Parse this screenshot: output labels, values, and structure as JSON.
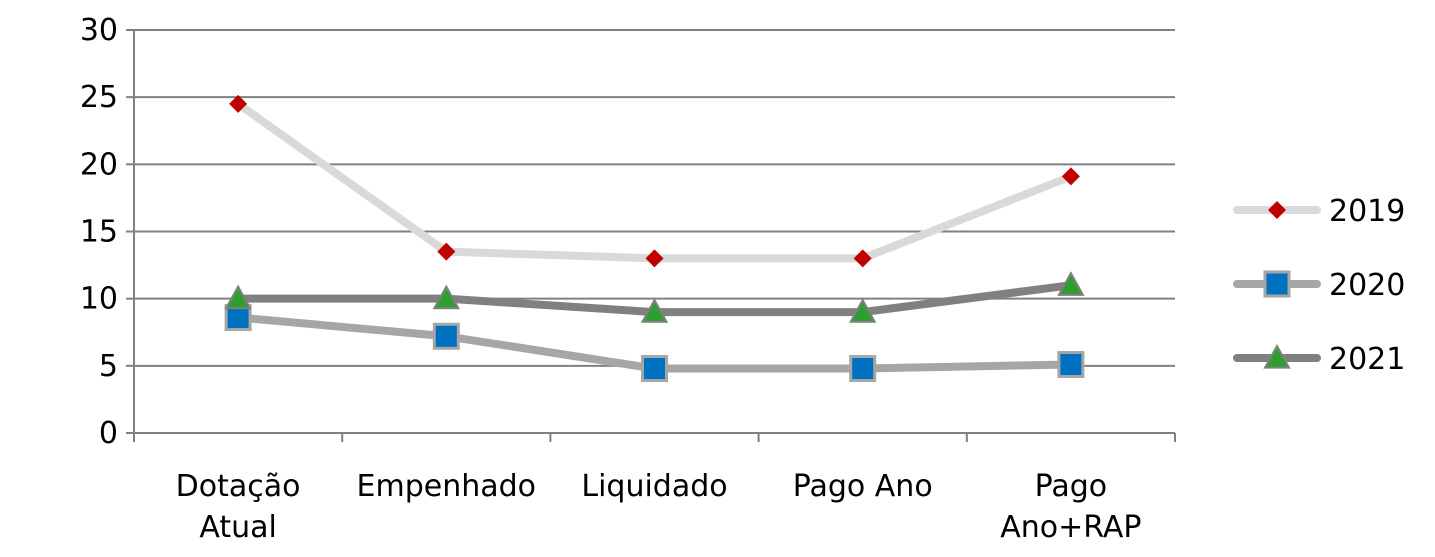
{
  "chart_data": {
    "type": "line",
    "categories": [
      [
        "Dotação",
        "Atual"
      ],
      [
        "Empenhado"
      ],
      [
        "Liquidado"
      ],
      [
        "Pago Ano"
      ],
      [
        "Pago",
        "Ano+RAP"
      ]
    ],
    "ylim": [
      0,
      30
    ],
    "yticks": [
      0,
      5,
      10,
      15,
      20,
      25,
      30
    ],
    "grid": true,
    "legend_position": "right",
    "series": [
      {
        "name": "2019",
        "values": [
          24.5,
          13.5,
          13.0,
          13.0,
          19.1
        ],
        "line_color": "#d9d9d9",
        "marker": "diamond",
        "marker_color": "#c00000"
      },
      {
        "name": "2020",
        "values": [
          8.6,
          7.2,
          4.8,
          4.8,
          5.1
        ],
        "line_color": "#a6a6a6",
        "marker": "square",
        "marker_color": "#0070c0"
      },
      {
        "name": "2021",
        "values": [
          10.0,
          10.0,
          9.0,
          9.0,
          11.0
        ],
        "line_color": "#808080",
        "marker": "triangle",
        "marker_color": "#2e9e2e"
      }
    ]
  }
}
